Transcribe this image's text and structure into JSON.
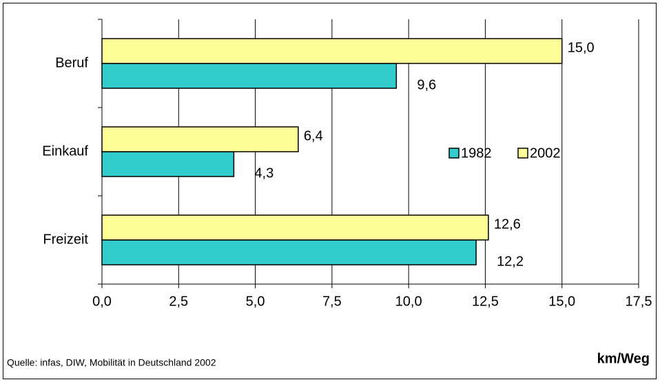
{
  "chart_data": {
    "type": "bar",
    "orientation": "horizontal",
    "categories": [
      "Beruf",
      "Einkauf",
      "Freizeit"
    ],
    "series": [
      {
        "name": "1982",
        "color": "#33cccc",
        "values": [
          9.6,
          4.3,
          12.2
        ],
        "value_labels": [
          "9,6",
          "4,3",
          "12,2"
        ]
      },
      {
        "name": "2002",
        "color": "#ffff99",
        "values": [
          15.0,
          6.4,
          12.6
        ],
        "value_labels": [
          "15,0",
          "6,4",
          "12,6"
        ]
      }
    ],
    "xlim": [
      0,
      17.5
    ],
    "xticks": [
      {
        "value": 0,
        "label": "0,0"
      },
      {
        "value": 2.5,
        "label": "2,5"
      },
      {
        "value": 5,
        "label": "5,0"
      },
      {
        "value": 7.5,
        "label": "7,5"
      },
      {
        "value": 10,
        "label": "10,0"
      },
      {
        "value": 12.5,
        "label": "12,5"
      },
      {
        "value": 15,
        "label": "15,0"
      },
      {
        "value": 17.5,
        "label": "17,5"
      }
    ],
    "xlabel": "km/Weg",
    "source": "Quelle: infas, DIW, Mobilität in Deutschland 2002",
    "grid": true,
    "legend": "right"
  }
}
